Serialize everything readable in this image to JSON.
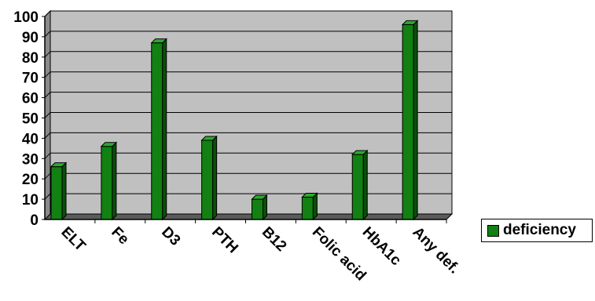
{
  "chart_data": {
    "type": "bar",
    "title": "",
    "xlabel": "",
    "ylabel": "",
    "categories": [
      "ELT",
      "Fe",
      "D3",
      "PTH",
      "B12",
      "Folic acid",
      "HbA1c",
      "Any def."
    ],
    "series": [
      {
        "name": "deficiency",
        "values": [
          26,
          36,
          87,
          39,
          10,
          11,
          32,
          96
        ]
      }
    ],
    "ylim": [
      0,
      100
    ],
    "yticks": [
      0,
      10,
      20,
      30,
      40,
      50,
      60,
      70,
      80,
      90,
      100
    ],
    "grid": true,
    "legend": "right",
    "colors": {
      "bar_front": "#128012",
      "bar_side": "#0a4f0a",
      "bar_top": "#2ea82e",
      "plot_bg": "#c0c0c0",
      "wall_side": "#8a8a8a",
      "floor": "#5a5a5a"
    }
  }
}
